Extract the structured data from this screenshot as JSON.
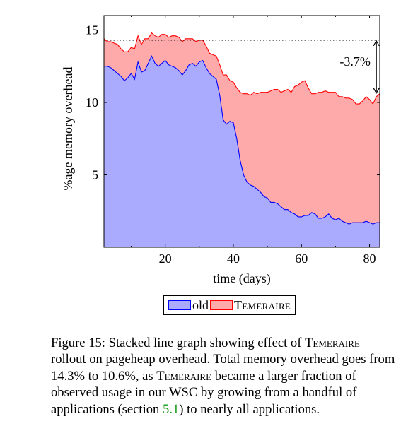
{
  "chart_data": {
    "type": "area",
    "stacked": true,
    "xlabel": "time (days)",
    "ylabel": "%age memory overhead",
    "xlim": [
      2,
      83
    ],
    "ylim": [
      0,
      16
    ],
    "xticks": [
      20,
      40,
      60,
      80
    ],
    "yticks": [
      5,
      10,
      15
    ],
    "grid": false,
    "legend_position": "bottom-center",
    "x": [
      2,
      3,
      4,
      5,
      6,
      7,
      8,
      9,
      10,
      11,
      12,
      13,
      14,
      15,
      16,
      17,
      18,
      19,
      20,
      21,
      22,
      23,
      24,
      25,
      26,
      27,
      28,
      29,
      30,
      31,
      32,
      33,
      34,
      35,
      36,
      37,
      38,
      39,
      40,
      41,
      42,
      43,
      44,
      45,
      46,
      47,
      48,
      49,
      50,
      51,
      52,
      53,
      54,
      55,
      56,
      57,
      58,
      59,
      60,
      61,
      62,
      63,
      64,
      65,
      66,
      67,
      68,
      69,
      70,
      71,
      72,
      73,
      74,
      75,
      76,
      77,
      78,
      79,
      80,
      81,
      82,
      83
    ],
    "series": [
      {
        "name": "old",
        "color": "#0000ff",
        "fill": "#aaaaff",
        "values": [
          12.5,
          12.5,
          12.4,
          12.2,
          12.0,
          11.8,
          11.5,
          11.7,
          12.0,
          11.6,
          12.8,
          12.1,
          12.2,
          12.7,
          13.2,
          12.7,
          12.5,
          12.7,
          12.9,
          12.6,
          12.5,
          12.4,
          12.2,
          11.9,
          12.2,
          12.6,
          12.7,
          12.5,
          12.8,
          12.9,
          12.4,
          12.0,
          11.8,
          11.6,
          10.5,
          8.8,
          8.5,
          8.7,
          8.6,
          7.5,
          6.0,
          5.0,
          4.5,
          4.3,
          4.2,
          4.0,
          3.8,
          3.5,
          3.4,
          3.1,
          3.1,
          3.0,
          2.8,
          2.6,
          2.6,
          2.4,
          2.3,
          2.1,
          2.1,
          2.2,
          2.2,
          2.4,
          2.3,
          2.0,
          2.0,
          2.1,
          2.3,
          2.0,
          1.9,
          2.0,
          1.8,
          1.7,
          1.6,
          1.7,
          1.7,
          1.7,
          1.7,
          1.8,
          1.7,
          1.6,
          1.7,
          1.7
        ]
      },
      {
        "name": "Temeraire",
        "color": "#ff0000",
        "fill": "#ffaaaa",
        "values": [
          1.9,
          1.7,
          1.8,
          1.9,
          2.0,
          1.9,
          2.0,
          1.8,
          1.8,
          2.1,
          1.8,
          1.9,
          2.2,
          1.7,
          1.6,
          1.9,
          2.0,
          2.0,
          1.8,
          1.9,
          2.1,
          2.2,
          2.3,
          2.3,
          2.2,
          1.8,
          1.7,
          1.7,
          1.5,
          1.4,
          1.5,
          1.4,
          1.5,
          1.6,
          2.1,
          3.1,
          3.4,
          2.8,
          2.8,
          3.5,
          4.7,
          5.6,
          6.1,
          6.2,
          6.5,
          6.6,
          6.9,
          7.2,
          7.3,
          7.7,
          7.8,
          7.9,
          7.9,
          8.2,
          8.3,
          8.3,
          8.8,
          9.1,
          9.3,
          9.3,
          8.8,
          8.2,
          8.3,
          8.7,
          8.7,
          8.7,
          8.4,
          8.7,
          8.8,
          8.4,
          8.6,
          8.6,
          8.7,
          8.5,
          8.2,
          8.2,
          8.4,
          8.6,
          8.5,
          8.3,
          8.7,
          8.9
        ]
      }
    ],
    "reference_line": {
      "y": 14.3,
      "style": "dotted"
    },
    "annotation": {
      "text": "-3.7%",
      "x": 82,
      "from": 14.3,
      "to": 10.6
    }
  },
  "legend": {
    "items": [
      {
        "label": "old"
      },
      {
        "label": "Temeraire"
      }
    ]
  },
  "caption": {
    "label": "Figure 15:",
    "t1": " Stacked line graph showing effect of ",
    "sc1": "Temeraire",
    "t2": " rollout on pageheap overhead. Total memory overhead goes from 14.3% to 10.6%, as ",
    "sc2": "Temeraire",
    "t3": " became a larger fraction of observed usage in our WSC by growing from a handful of applications (section ",
    "ref": "5.1",
    "t4": ") to nearly all applications."
  }
}
